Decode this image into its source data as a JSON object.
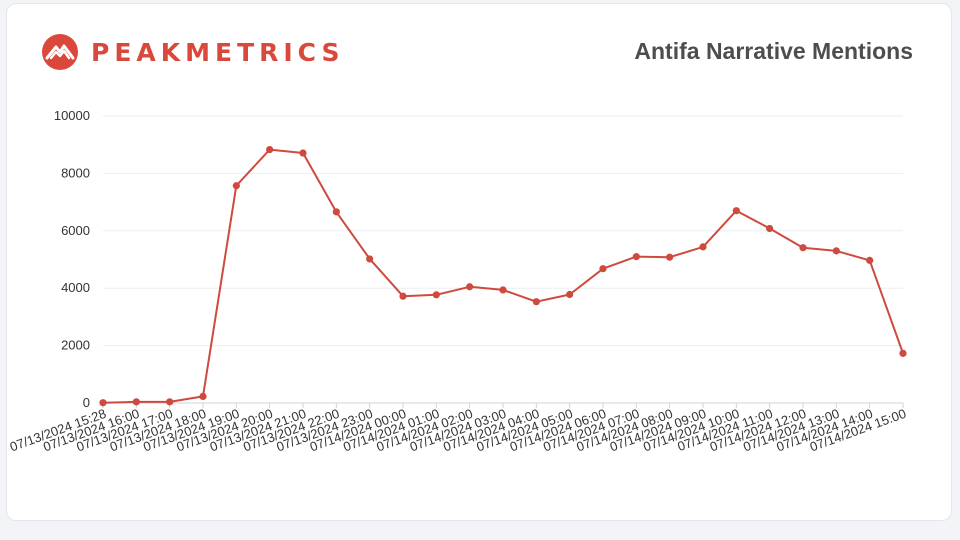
{
  "brand": {
    "name": "PEAKMETRICS",
    "color": "#d9483b",
    "icon": "mountain-logo-icon"
  },
  "title": "Antifa Narrative Mentions",
  "chart_data": {
    "type": "line",
    "title": "Antifa Narrative Mentions",
    "xlabel": "",
    "ylabel": "",
    "ylim": [
      0,
      10000
    ],
    "yticks": [
      0,
      2000,
      4000,
      6000,
      8000,
      10000
    ],
    "grid": true,
    "line_color": "#cf4a3e",
    "categories": [
      "07/13/2024 15:28",
      "07/13/2024 16:00",
      "07/13/2024 17:00",
      "07/13/2024 18:00",
      "07/13/2024 19:00",
      "07/13/2024 20:00",
      "07/13/2024 21:00",
      "07/13/2024 22:00",
      "07/13/2024 23:00",
      "07/14/2024 00:00",
      "07/14/2024 01:00",
      "07/14/2024 02:00",
      "07/14/2024 03:00",
      "07/14/2024 04:00",
      "07/14/2024 05:00",
      "07/14/2024 06:00",
      "07/14/2024 07:00",
      "07/14/2024 08:00",
      "07/14/2024 09:00",
      "07/14/2024 10:00",
      "07/14/2024 11:00",
      "07/14/2024 12:00",
      "07/14/2024 13:00",
      "07/14/2024 14:00",
      "07/14/2024 15:00"
    ],
    "values": [
      10,
      40,
      40,
      230,
      7570,
      8830,
      8710,
      6660,
      5020,
      3720,
      3770,
      4050,
      3940,
      3530,
      3780,
      4680,
      5100,
      5080,
      5440,
      6700,
      6080,
      5410,
      5300,
      4970,
      1730
    ]
  }
}
